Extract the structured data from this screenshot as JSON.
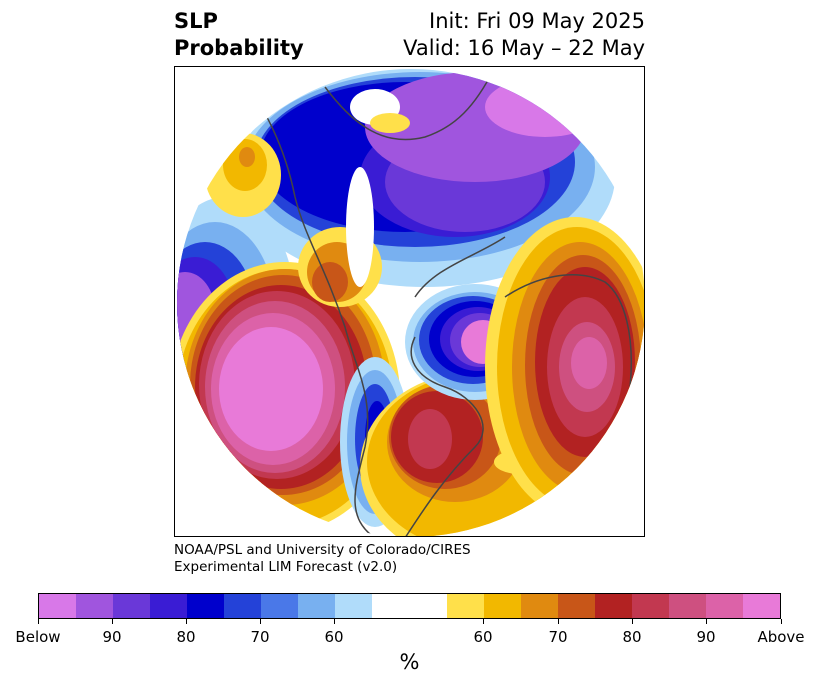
{
  "title": {
    "left_line1": "SLP",
    "left_line2": "Probability",
    "right_line1": "Init: Fri 09 May 2025",
    "right_line2": "Valid: 16 May – 22 May"
  },
  "credit": {
    "line1": "NOAA/PSL and University of Colorado/CIRES",
    "line2": "Experimental LIM Forecast (v2.0)"
  },
  "colorbar": {
    "unit": "%",
    "colors": [
      "#d878e8",
      "#a055de",
      "#6a38d8",
      "#3a1cd4",
      "#0000cc",
      "#2442d8",
      "#4a78e8",
      "#78b0f0",
      "#b0dcfa",
      "#ffffff",
      "#ffffff",
      "#ffe04a",
      "#f2b800",
      "#e08a10",
      "#c85618",
      "#b22222",
      "#c23850",
      "#ce5080",
      "#dc62a8",
      "#e87ad8"
    ],
    "tick_labels": [
      "Below",
      "90",
      "80",
      "70",
      "60",
      "60",
      "70",
      "80",
      "90",
      "Above"
    ]
  },
  "map": {
    "projection": "north polar stereographic",
    "regions": [
      {
        "name": "north-pacific-positive-anomaly",
        "category": "above"
      },
      {
        "name": "alaska-negative-anomaly",
        "category": "below"
      },
      {
        "name": "arctic-siberia-negative-anomaly",
        "category": "below"
      },
      {
        "name": "north-atlantic-negative-anomaly",
        "category": "below"
      },
      {
        "name": "europe-positive-anomaly",
        "category": "above"
      },
      {
        "name": "east-asia-positive-anomaly",
        "category": "above"
      },
      {
        "name": "eastern-north-america-positive-anomaly",
        "category": "above"
      },
      {
        "name": "western-north-america-negative-anomaly",
        "category": "below"
      }
    ]
  }
}
